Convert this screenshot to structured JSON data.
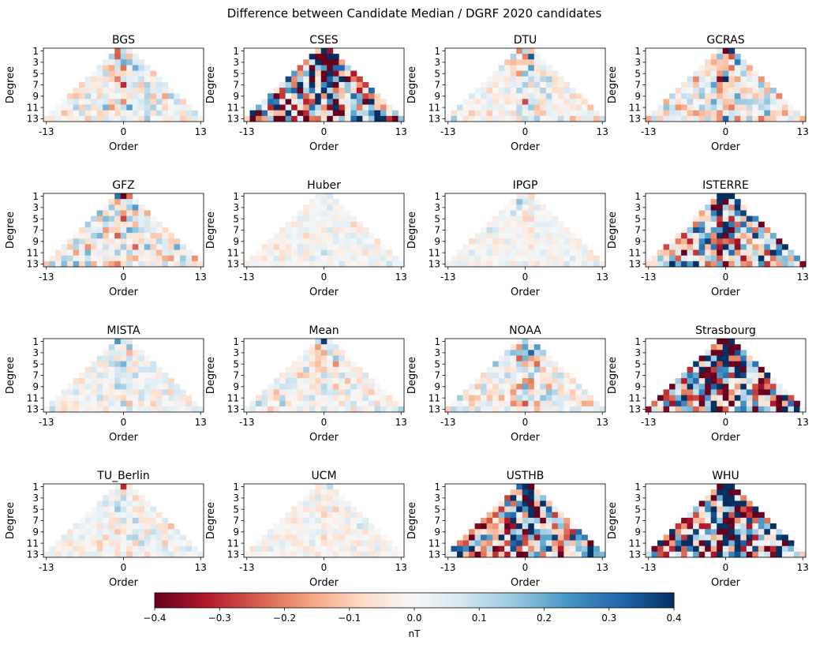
{
  "figure": {
    "suptitle": "Difference between Candidate Median / DGRF 2020 candidates"
  },
  "chart_data": {
    "type": "heatmap",
    "xlabel": "Order",
    "ylabel": "Degree",
    "x_range": [
      -13,
      13
    ],
    "y_range": [
      1,
      13
    ],
    "x_ticks": [
      "-13",
      "0",
      "13"
    ],
    "y_ticks": [
      "1",
      "3",
      "5",
      "7",
      "9",
      "11",
      "13"
    ],
    "panels": [
      {
        "title": "BGS",
        "intensity": 0.12,
        "center_boost": 0.6
      },
      {
        "title": "CSES",
        "intensity": 0.45,
        "center_boost": 1.0
      },
      {
        "title": "DTU",
        "intensity": 0.1,
        "center_boost": 0.9
      },
      {
        "title": "GCRAS",
        "intensity": 0.15,
        "center_boost": 0.9
      },
      {
        "title": "GFZ",
        "intensity": 0.14,
        "center_boost": 0.7
      },
      {
        "title": "Huber",
        "intensity": 0.06,
        "center_boost": 0.2
      },
      {
        "title": "IPGP",
        "intensity": 0.06,
        "center_boost": 0.2
      },
      {
        "title": "ISTERRE",
        "intensity": 0.35,
        "center_boost": 0.9
      },
      {
        "title": "MISTA",
        "intensity": 0.08,
        "center_boost": 0.7
      },
      {
        "title": "Mean",
        "intensity": 0.1,
        "center_boost": 0.3
      },
      {
        "title": "NOAA",
        "intensity": 0.12,
        "center_boost": 0.9
      },
      {
        "title": "Strasbourg",
        "intensity": 0.55,
        "center_boost": 0.8
      },
      {
        "title": "TU_Berlin",
        "intensity": 0.08,
        "center_boost": 0.6
      },
      {
        "title": "UCM",
        "intensity": 0.06,
        "center_boost": 0.2
      },
      {
        "title": "USTHB",
        "intensity": 0.4,
        "center_boost": 1.0
      },
      {
        "title": "WHU",
        "intensity": 0.55,
        "center_boost": 1.0
      }
    ],
    "colorbar": {
      "colormap": "RdBu",
      "vmin": -0.4,
      "vmax": 0.4,
      "label": "nT",
      "ticks": [
        "−0.4",
        "−0.3",
        "−0.2",
        "−0.1",
        "0.0",
        "0.1",
        "0.2",
        "0.3",
        "0.4"
      ]
    }
  }
}
